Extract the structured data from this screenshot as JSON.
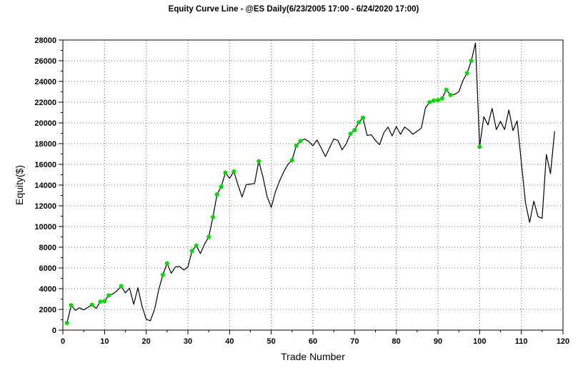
{
  "window": {
    "background_color": "#ffffff"
  },
  "chart_data": {
    "type": "line",
    "title": "Equity Curve Line - @ES Daily(6/23/2005 17:00 - 6/24/2020 17:00)",
    "xlabel": "Trade Number",
    "ylabel": "Equity($)",
    "xlim": [
      0,
      120
    ],
    "ylim": [
      0,
      28000
    ],
    "x_major_step": 10,
    "x_minor_step": 5,
    "y_major_step": 2000,
    "y_minor_step": 1000,
    "grid": "dotted-major-only",
    "legend": "none",
    "line_color": "#000000",
    "marker_color": "#00DC00",
    "marker_meaning": "green dot on equity line (winning trade / new equity high)",
    "x_start_trade": 1,
    "series": [
      {
        "name": "Equity",
        "values": [
          700,
          2400,
          1900,
          2150,
          1950,
          2200,
          2450,
          2100,
          2750,
          2800,
          3350,
          3500,
          3800,
          4250,
          3600,
          4050,
          2500,
          4100,
          2300,
          1050,
          900,
          2000,
          3900,
          5350,
          6450,
          5500,
          6100,
          6150,
          5800,
          6100,
          7650,
          8150,
          7400,
          8300,
          9000,
          10900,
          13100,
          13850,
          15200,
          14650,
          15310,
          14050,
          12850,
          14050,
          14100,
          14150,
          16300,
          14800,
          12900,
          11850,
          13350,
          14400,
          15300,
          16000,
          16400,
          17800,
          18250,
          18450,
          18200,
          17800,
          18350,
          17550,
          16750,
          17600,
          18450,
          18300,
          17400,
          18000,
          18950,
          19300,
          20050,
          20500,
          18800,
          18850,
          18300,
          17900,
          19050,
          19600,
          18750,
          19650,
          18900,
          19600,
          19300,
          18900,
          19200,
          19500,
          21450,
          22000,
          22150,
          22200,
          22350,
          23200,
          22700,
          22750,
          23000,
          24100,
          24800,
          26000,
          27700,
          17700,
          20600,
          19800,
          21400,
          19350,
          20150,
          19350,
          21250,
          19250,
          20200,
          16200,
          12300,
          10400,
          12450,
          10950,
          10800,
          16950,
          15100,
          19200
        ]
      }
    ],
    "marker_trades": [
      1,
      2,
      7,
      9,
      10,
      11,
      14,
      24,
      25,
      31,
      32,
      35,
      36,
      37,
      38,
      39,
      41,
      47,
      55,
      56,
      57,
      69,
      70,
      71,
      72,
      88,
      89,
      90,
      91,
      92,
      93,
      97,
      98,
      100
    ]
  }
}
